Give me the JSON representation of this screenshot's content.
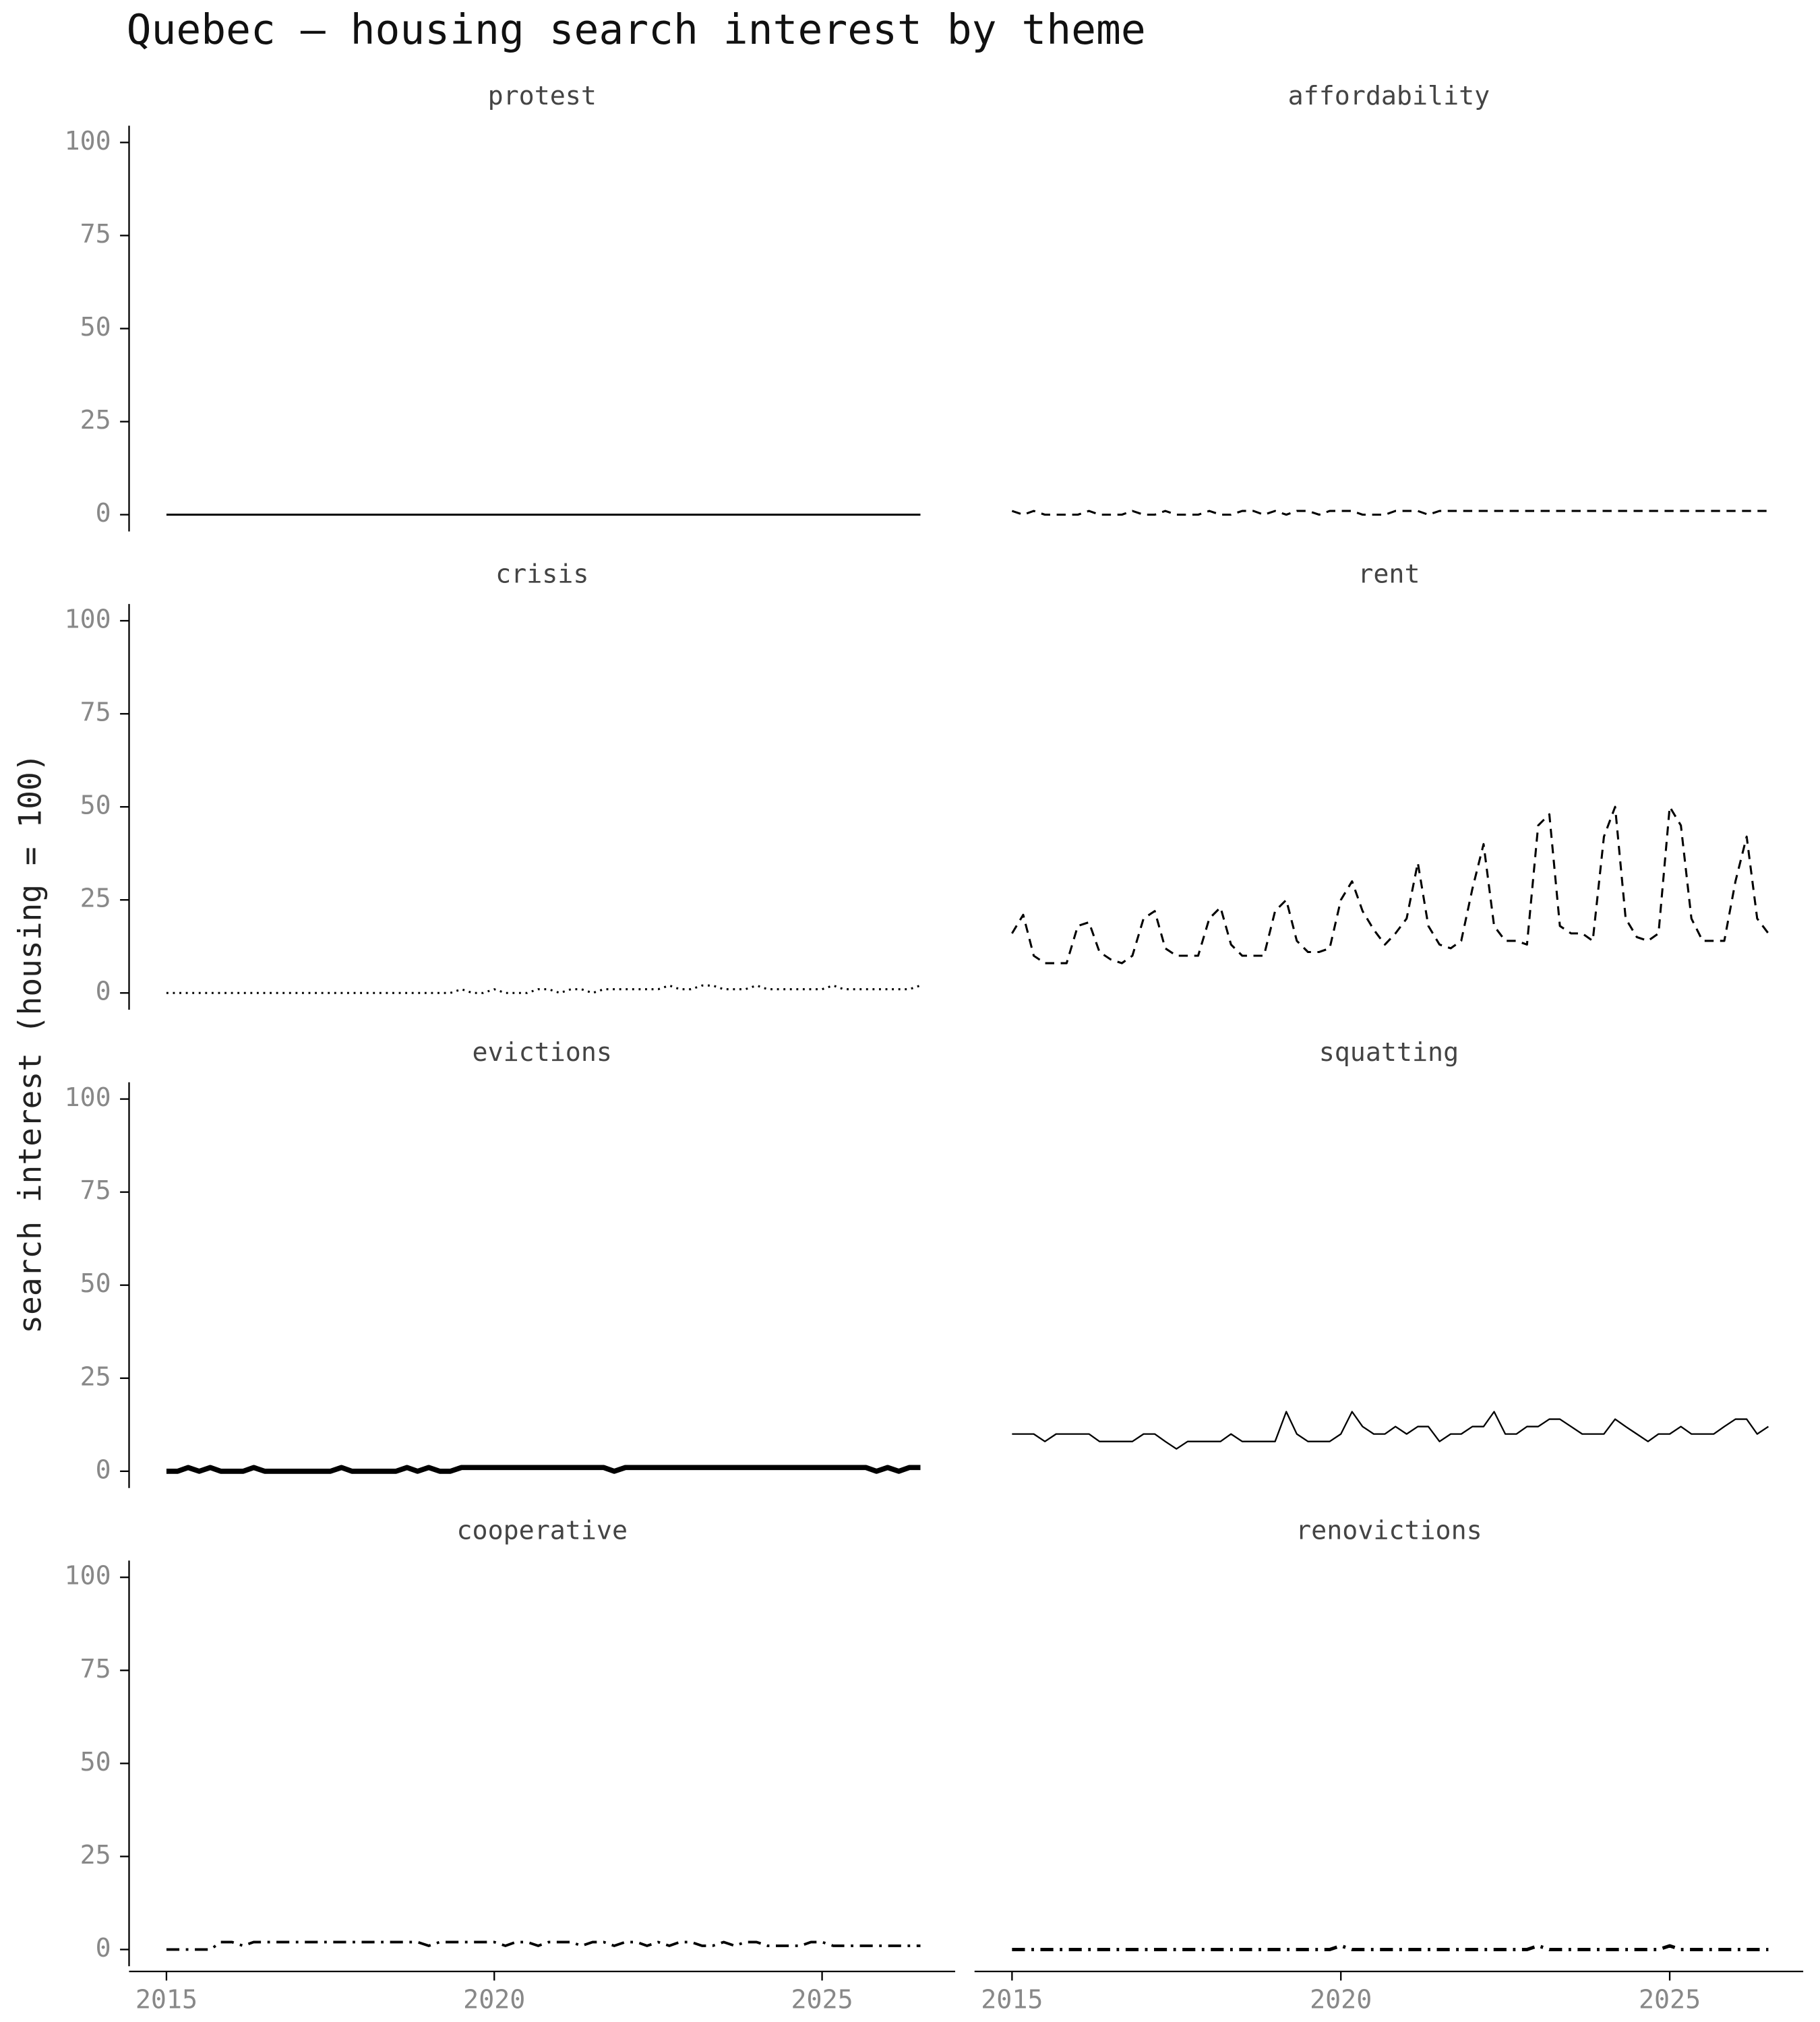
{
  "chart_data": {
    "type": "line",
    "title": "Quebec — housing search interest by theme",
    "ylabel": "search interest (housing = 100)",
    "x": [
      2015,
      2015.17,
      2015.33,
      2015.5,
      2015.67,
      2015.83,
      2016,
      2016.17,
      2016.33,
      2016.5,
      2016.67,
      2016.83,
      2017,
      2017.17,
      2017.33,
      2017.5,
      2017.67,
      2017.83,
      2018,
      2018.17,
      2018.33,
      2018.5,
      2018.67,
      2018.83,
      2019,
      2019.17,
      2019.33,
      2019.5,
      2019.67,
      2019.83,
      2020,
      2020.17,
      2020.33,
      2020.5,
      2020.67,
      2020.83,
      2021,
      2021.17,
      2021.33,
      2021.5,
      2021.67,
      2021.83,
      2022,
      2022.17,
      2022.33,
      2022.5,
      2022.67,
      2022.83,
      2023,
      2023.17,
      2023.33,
      2023.5,
      2023.67,
      2023.83,
      2024,
      2024.17,
      2024.33,
      2024.5,
      2024.67,
      2024.83,
      2025,
      2025.17,
      2025.33,
      2025.5,
      2025.67,
      2025.83,
      2026,
      2026.17,
      2026.33,
      2026.5
    ],
    "xlim": [
      2014.43,
      2027.03
    ],
    "xticks": [
      2015,
      2020,
      2025
    ],
    "ylim": [
      -4.5,
      104.5
    ],
    "yticks": [
      0,
      25,
      50,
      75,
      100
    ],
    "series": [
      {
        "name": "protest",
        "color": "#000000",
        "linestyle": "solid",
        "linewidth": 1.6,
        "values": [
          0,
          0,
          0,
          0,
          0,
          0,
          0,
          0,
          0,
          0,
          0,
          0,
          0,
          0,
          0,
          0,
          0,
          0,
          0,
          0,
          0,
          0,
          0,
          0,
          0,
          0,
          0,
          0,
          0,
          0,
          0,
          0,
          0,
          0,
          0,
          0,
          0,
          0,
          0,
          0,
          0,
          0,
          0,
          0,
          0,
          0,
          0,
          0,
          0,
          0,
          0,
          0,
          0,
          0,
          0,
          0,
          0,
          0,
          0,
          0,
          0,
          0,
          0,
          0,
          0,
          0,
          0,
          0,
          0,
          0
        ]
      },
      {
        "name": "affordability",
        "color": "#000000",
        "linestyle": "dashed",
        "linewidth": 1.6,
        "values": [
          1,
          0,
          1,
          0,
          0,
          0,
          0,
          1,
          0,
          0,
          0,
          1,
          0,
          0,
          1,
          0,
          0,
          0,
          1,
          0,
          0,
          1,
          1,
          0,
          1,
          0,
          1,
          1,
          0,
          1,
          1,
          1,
          0,
          0,
          0,
          1,
          1,
          1,
          0,
          1,
          1,
          1,
          1,
          1,
          1,
          1,
          1,
          1,
          1,
          1,
          1,
          1,
          1,
          1,
          1,
          1,
          1,
          1,
          1,
          1,
          1,
          1,
          1,
          1,
          1,
          1,
          1,
          1,
          1,
          1
        ]
      },
      {
        "name": "crisis",
        "color": "#000000",
        "linestyle": "dotted",
        "linewidth": 1.6,
        "values": [
          0,
          0,
          0,
          0,
          0,
          0,
          0,
          0,
          0,
          0,
          0,
          0,
          0,
          0,
          0,
          0,
          0,
          0,
          0,
          0,
          0,
          0,
          0,
          0,
          0,
          0,
          0,
          1,
          0,
          0,
          1,
          0,
          0,
          0,
          1,
          1,
          0,
          1,
          1,
          0,
          1,
          1,
          1,
          1,
          1,
          1,
          2,
          1,
          1,
          2,
          2,
          1,
          1,
          1,
          2,
          1,
          1,
          1,
          1,
          1,
          1,
          2,
          1,
          1,
          1,
          1,
          1,
          1,
          1,
          2
        ]
      },
      {
        "name": "rent",
        "color": "#000000",
        "linestyle": "dashed",
        "linewidth": 1.6,
        "values": [
          16,
          21,
          10,
          8,
          8,
          8,
          18,
          19,
          11,
          9,
          8,
          10,
          20,
          22,
          12,
          10,
          10,
          10,
          20,
          23,
          13,
          10,
          10,
          10,
          22,
          25,
          14,
          11,
          11,
          12,
          25,
          30,
          22,
          17,
          13,
          16,
          20,
          35,
          18,
          13,
          12,
          14,
          28,
          40,
          18,
          14,
          14,
          13,
          45,
          48,
          18,
          16,
          16,
          14,
          42,
          50,
          20,
          15,
          14,
          16,
          50,
          45,
          20,
          14,
          14,
          14,
          30,
          42,
          20,
          16
        ]
      },
      {
        "name": "evictions",
        "color": "#000000",
        "linestyle": "solid",
        "linewidth": 4,
        "values": [
          0,
          0,
          1,
          0,
          1,
          0,
          0,
          0,
          1,
          0,
          0,
          0,
          0,
          0,
          0,
          0,
          1,
          0,
          0,
          0,
          0,
          0,
          1,
          0,
          1,
          0,
          0,
          1,
          1,
          1,
          1,
          1,
          1,
          1,
          1,
          1,
          1,
          1,
          1,
          1,
          1,
          0,
          1,
          1,
          1,
          1,
          1,
          1,
          1,
          1,
          1,
          1,
          1,
          1,
          1,
          1,
          1,
          1,
          1,
          1,
          1,
          1,
          1,
          1,
          1,
          0,
          1,
          0,
          1,
          1
        ]
      },
      {
        "name": "squatting",
        "color": "#000000",
        "linestyle": "solid",
        "linewidth": 1.2,
        "values": [
          10,
          10,
          10,
          8,
          10,
          10,
          10,
          10,
          8,
          8,
          8,
          8,
          10,
          10,
          8,
          6,
          8,
          8,
          8,
          8,
          10,
          8,
          8,
          8,
          8,
          16,
          10,
          8,
          8,
          8,
          10,
          16,
          12,
          10,
          10,
          12,
          10,
          12,
          12,
          8,
          10,
          10,
          12,
          12,
          16,
          10,
          10,
          12,
          12,
          14,
          14,
          12,
          10,
          10,
          10,
          14,
          12,
          10,
          8,
          10,
          10,
          12,
          10,
          10,
          10,
          12,
          14,
          14,
          10,
          12
        ]
      },
      {
        "name": "cooperative",
        "color": "#000000",
        "linestyle": "dashdot",
        "linewidth": 2,
        "values": [
          0,
          0,
          0,
          0,
          0,
          2,
          2,
          1,
          2,
          2,
          2,
          2,
          2,
          2,
          2,
          2,
          2,
          2,
          2,
          2,
          2,
          2,
          2,
          2,
          1,
          2,
          2,
          2,
          2,
          2,
          2,
          1,
          2,
          2,
          1,
          2,
          2,
          2,
          1,
          2,
          2,
          1,
          2,
          2,
          1,
          2,
          1,
          2,
          2,
          1,
          1,
          2,
          1,
          2,
          2,
          1,
          1,
          1,
          1,
          2,
          2,
          1,
          1,
          1,
          1,
          1,
          1,
          1,
          1,
          1
        ]
      },
      {
        "name": "renovictions",
        "color": "#000000",
        "linestyle": "dashdot",
        "linewidth": 2.6,
        "values": [
          0,
          0,
          0,
          0,
          0,
          0,
          0,
          0,
          0,
          0,
          0,
          0,
          0,
          0,
          0,
          0,
          0,
          0,
          0,
          0,
          0,
          0,
          0,
          0,
          0,
          0,
          0,
          0,
          0,
          0,
          1,
          0,
          0,
          0,
          0,
          0,
          0,
          0,
          0,
          0,
          0,
          0,
          0,
          0,
          0,
          0,
          0,
          0,
          1,
          0,
          0,
          0,
          0,
          0,
          0,
          0,
          0,
          0,
          0,
          0,
          1,
          0,
          0,
          0,
          0,
          0,
          0,
          0,
          0,
          0
        ]
      }
    ]
  }
}
